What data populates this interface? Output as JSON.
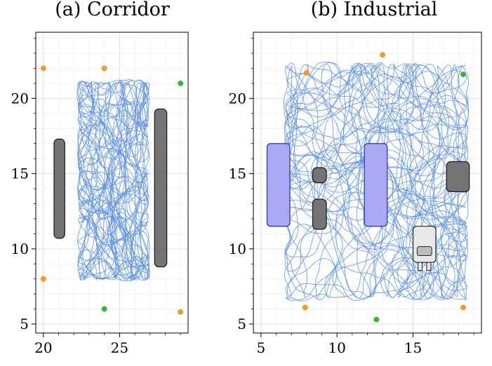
{
  "chart_data": [
    {
      "type": "line",
      "title": "(a) Corridor",
      "xlabel": "",
      "ylabel": "",
      "xlim": [
        19.5,
        29.5
      ],
      "ylim": [
        4.4,
        24.4
      ],
      "xticks": [
        20,
        25
      ],
      "yticks": [
        5,
        10,
        15,
        20
      ],
      "grid": true,
      "trajectory_region": {
        "x": [
          22.2,
          27.0
        ],
        "y": [
          7.8,
          21.3
        ]
      },
      "obstacles": [
        {
          "name": "left wall",
          "x": [
            20.7,
            21.4
          ],
          "y": [
            10.7,
            17.3
          ]
        },
        {
          "name": "right wall",
          "x": [
            27.3,
            28.1
          ],
          "y": [
            8.8,
            19.3
          ]
        }
      ],
      "orange_points": [
        [
          20,
          22
        ],
        [
          24,
          22
        ],
        [
          20,
          8
        ],
        [
          29,
          5.8
        ]
      ],
      "green_points": [
        [
          29,
          21
        ],
        [
          24,
          6
        ]
      ]
    },
    {
      "type": "line",
      "title": "(b) Industrial",
      "xlabel": "",
      "ylabel": "",
      "xlim": [
        4.5,
        19.5
      ],
      "ylim": [
        4.4,
        24.4
      ],
      "xticks": [
        5,
        10,
        15
      ],
      "yticks": [
        5,
        10,
        15,
        20
      ],
      "grid": true,
      "trajectory_region": {
        "x": [
          6.5,
          18.7
        ],
        "y": [
          6.5,
          22.5
        ]
      },
      "shelves": [
        {
          "x": [
            5.4,
            6.9
          ],
          "y": [
            11.5,
            17.0
          ]
        },
        {
          "x": [
            11.8,
            13.3
          ],
          "y": [
            11.5,
            17.0
          ]
        }
      ],
      "obstacles": [
        {
          "x": [
            8.4,
            9.3
          ],
          "y": [
            14.4,
            15.4
          ]
        },
        {
          "x": [
            8.4,
            9.3
          ],
          "y": [
            11.3,
            13.3
          ]
        },
        {
          "x": [
            17.2,
            18.7
          ],
          "y": [
            13.8,
            15.8
          ]
        }
      ],
      "robot": {
        "x": [
          15.0,
          16.5
        ],
        "y": [
          8.5,
          11.5
        ]
      },
      "orange_points": [
        [
          8,
          21.7
        ],
        [
          13,
          22.9
        ],
        [
          7.9,
          6.1
        ],
        [
          18.3,
          6.1
        ]
      ],
      "green_points": [
        [
          18.3,
          21.6
        ],
        [
          12.6,
          5.3
        ]
      ]
    }
  ],
  "colors": {
    "trajectory": "#5b8fe0",
    "orange_point": "#f29a24",
    "green_point": "#3cb632",
    "obstacle": "#747474",
    "shelf": "#a9a9f5",
    "robot": "#e8e8e8"
  }
}
